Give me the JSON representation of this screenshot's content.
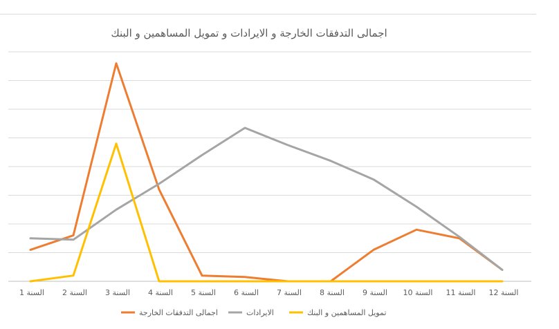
{
  "chart_data": {
    "type": "line",
    "title": "اجمالى التدفقات الخارجة و الايرادات و تمويل المساهمين و البنك",
    "xlabel": "",
    "ylabel": "",
    "categories": [
      "السنة 1",
      "السنة 2",
      "السنة 3",
      "السنة 4",
      "السنة 5",
      "السنة 6",
      "السنة 7",
      "السنة 8",
      "السنة 9",
      "السنة 10",
      "السنة 11",
      "السنة 12"
    ],
    "ylim": [
      0,
      8
    ],
    "grid": true,
    "y_tick_labels_shown": false,
    "legend_position": "bottom",
    "series": [
      {
        "name": "اجمالى التدفقات الخارجة",
        "color": "#ED7D31",
        "values": [
          1.1,
          1.6,
          7.6,
          3.2,
          0.2,
          0.15,
          0.0,
          0.0,
          1.1,
          1.8,
          1.5,
          0.4
        ]
      },
      {
        "name": "الايرادات",
        "color": "#A5A5A5",
        "values": [
          1.5,
          1.45,
          2.5,
          3.4,
          4.4,
          5.35,
          4.75,
          4.2,
          3.55,
          2.6,
          1.55,
          0.4
        ]
      },
      {
        "name": "تمويل المساهمين و البنك",
        "color": "#FFC000",
        "values": [
          0.0,
          0.2,
          4.8,
          0.0,
          0.0,
          0.0,
          0.0,
          0.0,
          0.0,
          0.0,
          0.0,
          0.0
        ]
      }
    ]
  }
}
